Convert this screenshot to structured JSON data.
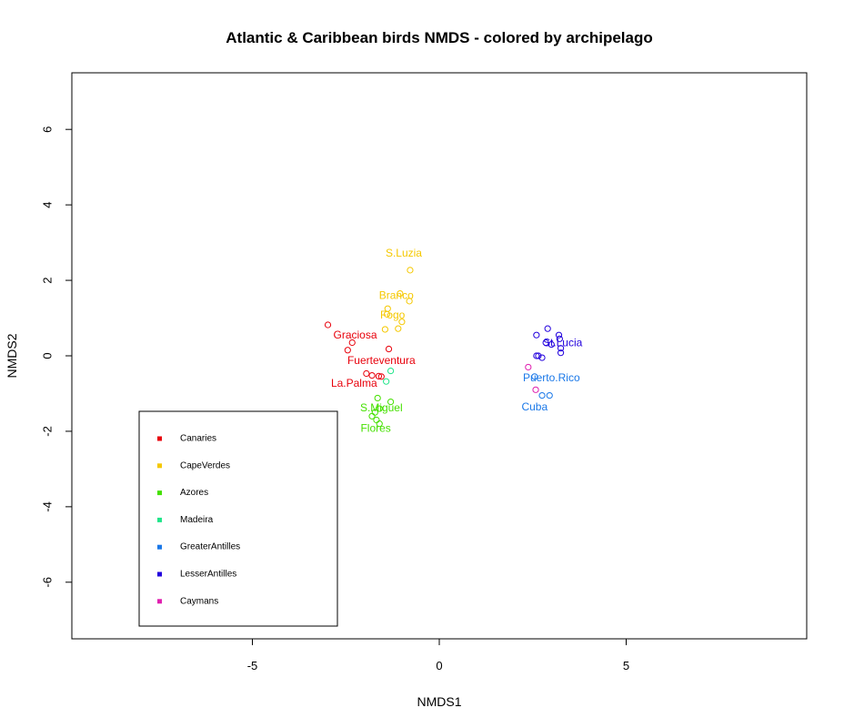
{
  "chart_data": {
    "type": "scatter",
    "title": "Atlantic & Caribbean birds NMDS - colored by archipelago",
    "xlabel": "NMDS1",
    "ylabel": "NMDS2",
    "xlim": [
      -9.83,
      9.83
    ],
    "ylim": [
      -7.5,
      7.5
    ],
    "xticks": [
      -5,
      0,
      5
    ],
    "yticks": [
      -6,
      -4,
      -2,
      0,
      2,
      4,
      6
    ],
    "grid": false,
    "legend_position": "bottom-left",
    "series": [
      {
        "name": "Canaries",
        "color": "#e8000b",
        "points": [
          [
            -2.98,
            0.82
          ],
          [
            -2.33,
            0.35
          ],
          [
            -2.45,
            0.15
          ],
          [
            -1.35,
            0.18
          ],
          [
            -1.95,
            -0.47
          ],
          [
            -1.8,
            -0.52
          ],
          [
            -1.62,
            -0.54
          ],
          [
            -1.55,
            -0.55
          ]
        ],
        "labels": [
          {
            "text": "Graciosa",
            "x": -2.25,
            "y": 0.55
          },
          {
            "text": "Fuerteventura",
            "x": -1.55,
            "y": -0.12
          },
          {
            "text": "La.Palma",
            "x": -2.28,
            "y": -0.72
          }
        ]
      },
      {
        "name": "CapeVerdes",
        "color": "#f5c800",
        "points": [
          [
            -0.78,
            2.27
          ],
          [
            -1.05,
            1.65
          ],
          [
            -0.8,
            1.45
          ],
          [
            -1.38,
            1.25
          ],
          [
            -1.4,
            1.1
          ],
          [
            -1.0,
            0.9
          ],
          [
            -1.45,
            0.7
          ],
          [
            -1.1,
            0.72
          ]
        ],
        "labels": [
          {
            "text": "S.Luzia",
            "x": -0.95,
            "y": 2.72
          },
          {
            "text": "Branco",
            "x": -1.15,
            "y": 1.6
          },
          {
            "text": "Fogo",
            "x": -1.25,
            "y": 1.08
          }
        ]
      },
      {
        "name": "Azores",
        "color": "#45e000",
        "points": [
          [
            -1.65,
            -1.12
          ],
          [
            -1.3,
            -1.22
          ],
          [
            -1.6,
            -1.4
          ],
          [
            -1.72,
            -1.5
          ],
          [
            -1.8,
            -1.6
          ],
          [
            -1.68,
            -1.7
          ],
          [
            -1.6,
            -1.8
          ]
        ],
        "labels": [
          {
            "text": "S.Miguel",
            "x": -1.55,
            "y": -1.38
          },
          {
            "text": "Flores",
            "x": -1.7,
            "y": -1.92
          }
        ]
      },
      {
        "name": "Madeira",
        "color": "#21e58a",
        "points": [
          [
            -1.3,
            -0.4
          ],
          [
            -1.42,
            -0.68
          ]
        ],
        "labels": []
      },
      {
        "name": "GreaterAntilles",
        "color": "#1a78e8",
        "points": [
          [
            2.55,
            -0.55
          ],
          [
            2.75,
            -1.05
          ],
          [
            2.95,
            -1.05
          ]
        ],
        "labels": [
          {
            "text": "Puerto.Rico",
            "x": 3.0,
            "y": -0.58
          },
          {
            "text": "Cuba",
            "x": 2.55,
            "y": -1.35
          }
        ]
      },
      {
        "name": "LesserAntilles",
        "color": "#2200dd",
        "points": [
          [
            2.9,
            0.72
          ],
          [
            2.6,
            0.55
          ],
          [
            3.2,
            0.55
          ],
          [
            3.22,
            0.45
          ],
          [
            2.85,
            0.35
          ],
          [
            3.0,
            0.3
          ],
          [
            3.25,
            0.2
          ],
          [
            3.25,
            0.08
          ],
          [
            2.6,
            0.0
          ],
          [
            2.65,
            0.0
          ],
          [
            2.75,
            -0.05
          ]
        ],
        "labels": [
          {
            "text": "St.Lucia",
            "x": 3.3,
            "y": 0.35
          }
        ]
      },
      {
        "name": "Caymans",
        "color": "#e020b0",
        "points": [
          [
            2.38,
            -0.3
          ],
          [
            2.58,
            -0.9
          ]
        ],
        "labels": []
      }
    ]
  }
}
